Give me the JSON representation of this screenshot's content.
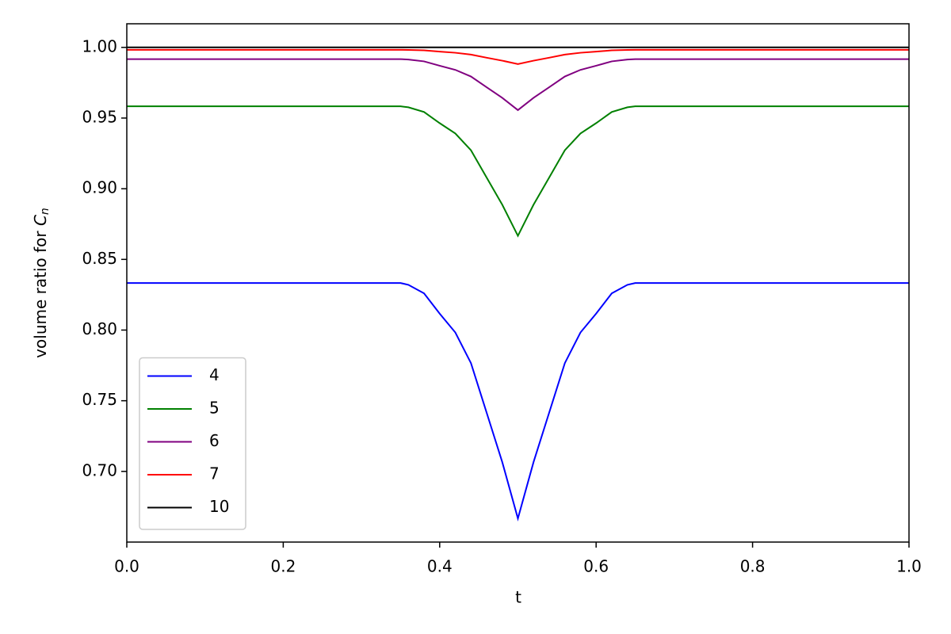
{
  "chart_data": {
    "type": "line",
    "xlabel": "t",
    "ylabel": {
      "text": "volume ratio for ",
      "symbol": "C",
      "subscript": "n"
    },
    "x": [
      0,
      0.35,
      0.36,
      0.38,
      0.4,
      0.42,
      0.44,
      0.46,
      0.48,
      0.5,
      0.52,
      0.54,
      0.56,
      0.58,
      0.6,
      0.62,
      0.64,
      0.65,
      1.0
    ],
    "series": [
      {
        "name": "4",
        "color": "#0000ff",
        "values": [
          0.8333,
          0.8333,
          0.832,
          0.826,
          0.8116,
          0.7983,
          0.7766,
          0.7416,
          0.7066,
          0.6667,
          0.7066,
          0.7416,
          0.7766,
          0.7983,
          0.8116,
          0.826,
          0.832,
          0.8333,
          0.8333
        ]
      },
      {
        "name": "5",
        "color": "#008000",
        "values": [
          0.9583,
          0.9583,
          0.9576,
          0.9543,
          0.9464,
          0.9391,
          0.9272,
          0.9079,
          0.8887,
          0.8667,
          0.8887,
          0.9079,
          0.9272,
          0.9391,
          0.9464,
          0.9543,
          0.9576,
          0.9583,
          0.9583
        ]
      },
      {
        "name": "6",
        "color": "#800080",
        "values": [
          0.9917,
          0.9917,
          0.9914,
          0.9901,
          0.987,
          0.9841,
          0.9794,
          0.9718,
          0.9643,
          0.9556,
          0.9643,
          0.9718,
          0.9794,
          0.9841,
          0.987,
          0.9901,
          0.9914,
          0.9917,
          0.9917
        ]
      },
      {
        "name": "7",
        "color": "#ff0000",
        "values": [
          0.9983,
          0.9983,
          0.9982,
          0.9979,
          0.997,
          0.9962,
          0.9949,
          0.9927,
          0.9906,
          0.9882,
          0.9906,
          0.9927,
          0.9949,
          0.9962,
          0.997,
          0.9979,
          0.9982,
          0.9983,
          0.9983
        ]
      },
      {
        "name": "10",
        "color": "#000000",
        "values": [
          1.0,
          1.0,
          1.0,
          1.0,
          1.0,
          1.0,
          1.0,
          1.0,
          1.0,
          1.0,
          1.0,
          1.0,
          1.0,
          1.0,
          1.0,
          1.0,
          1.0,
          1.0,
          1.0
        ]
      }
    ],
    "xlim": [
      0,
      1
    ],
    "ylim": [
      0.65,
      1.0167
    ],
    "xticks": [
      {
        "value": 0,
        "label": "0.0"
      },
      {
        "value": 0.2,
        "label": "0.2"
      },
      {
        "value": 0.4,
        "label": "0.4"
      },
      {
        "value": 0.6,
        "label": "0.6"
      },
      {
        "value": 0.8,
        "label": "0.8"
      },
      {
        "value": 1.0,
        "label": "1.0"
      }
    ],
    "yticks": [
      {
        "value": 0.7,
        "label": "0.70"
      },
      {
        "value": 0.75,
        "label": "0.75"
      },
      {
        "value": 0.8,
        "label": "0.80"
      },
      {
        "value": 0.85,
        "label": "0.85"
      },
      {
        "value": 0.9,
        "label": "0.90"
      },
      {
        "value": 0.95,
        "label": "0.95"
      },
      {
        "value": 1.0,
        "label": "1.00"
      }
    ],
    "grid": false,
    "legend": "lower left"
  }
}
